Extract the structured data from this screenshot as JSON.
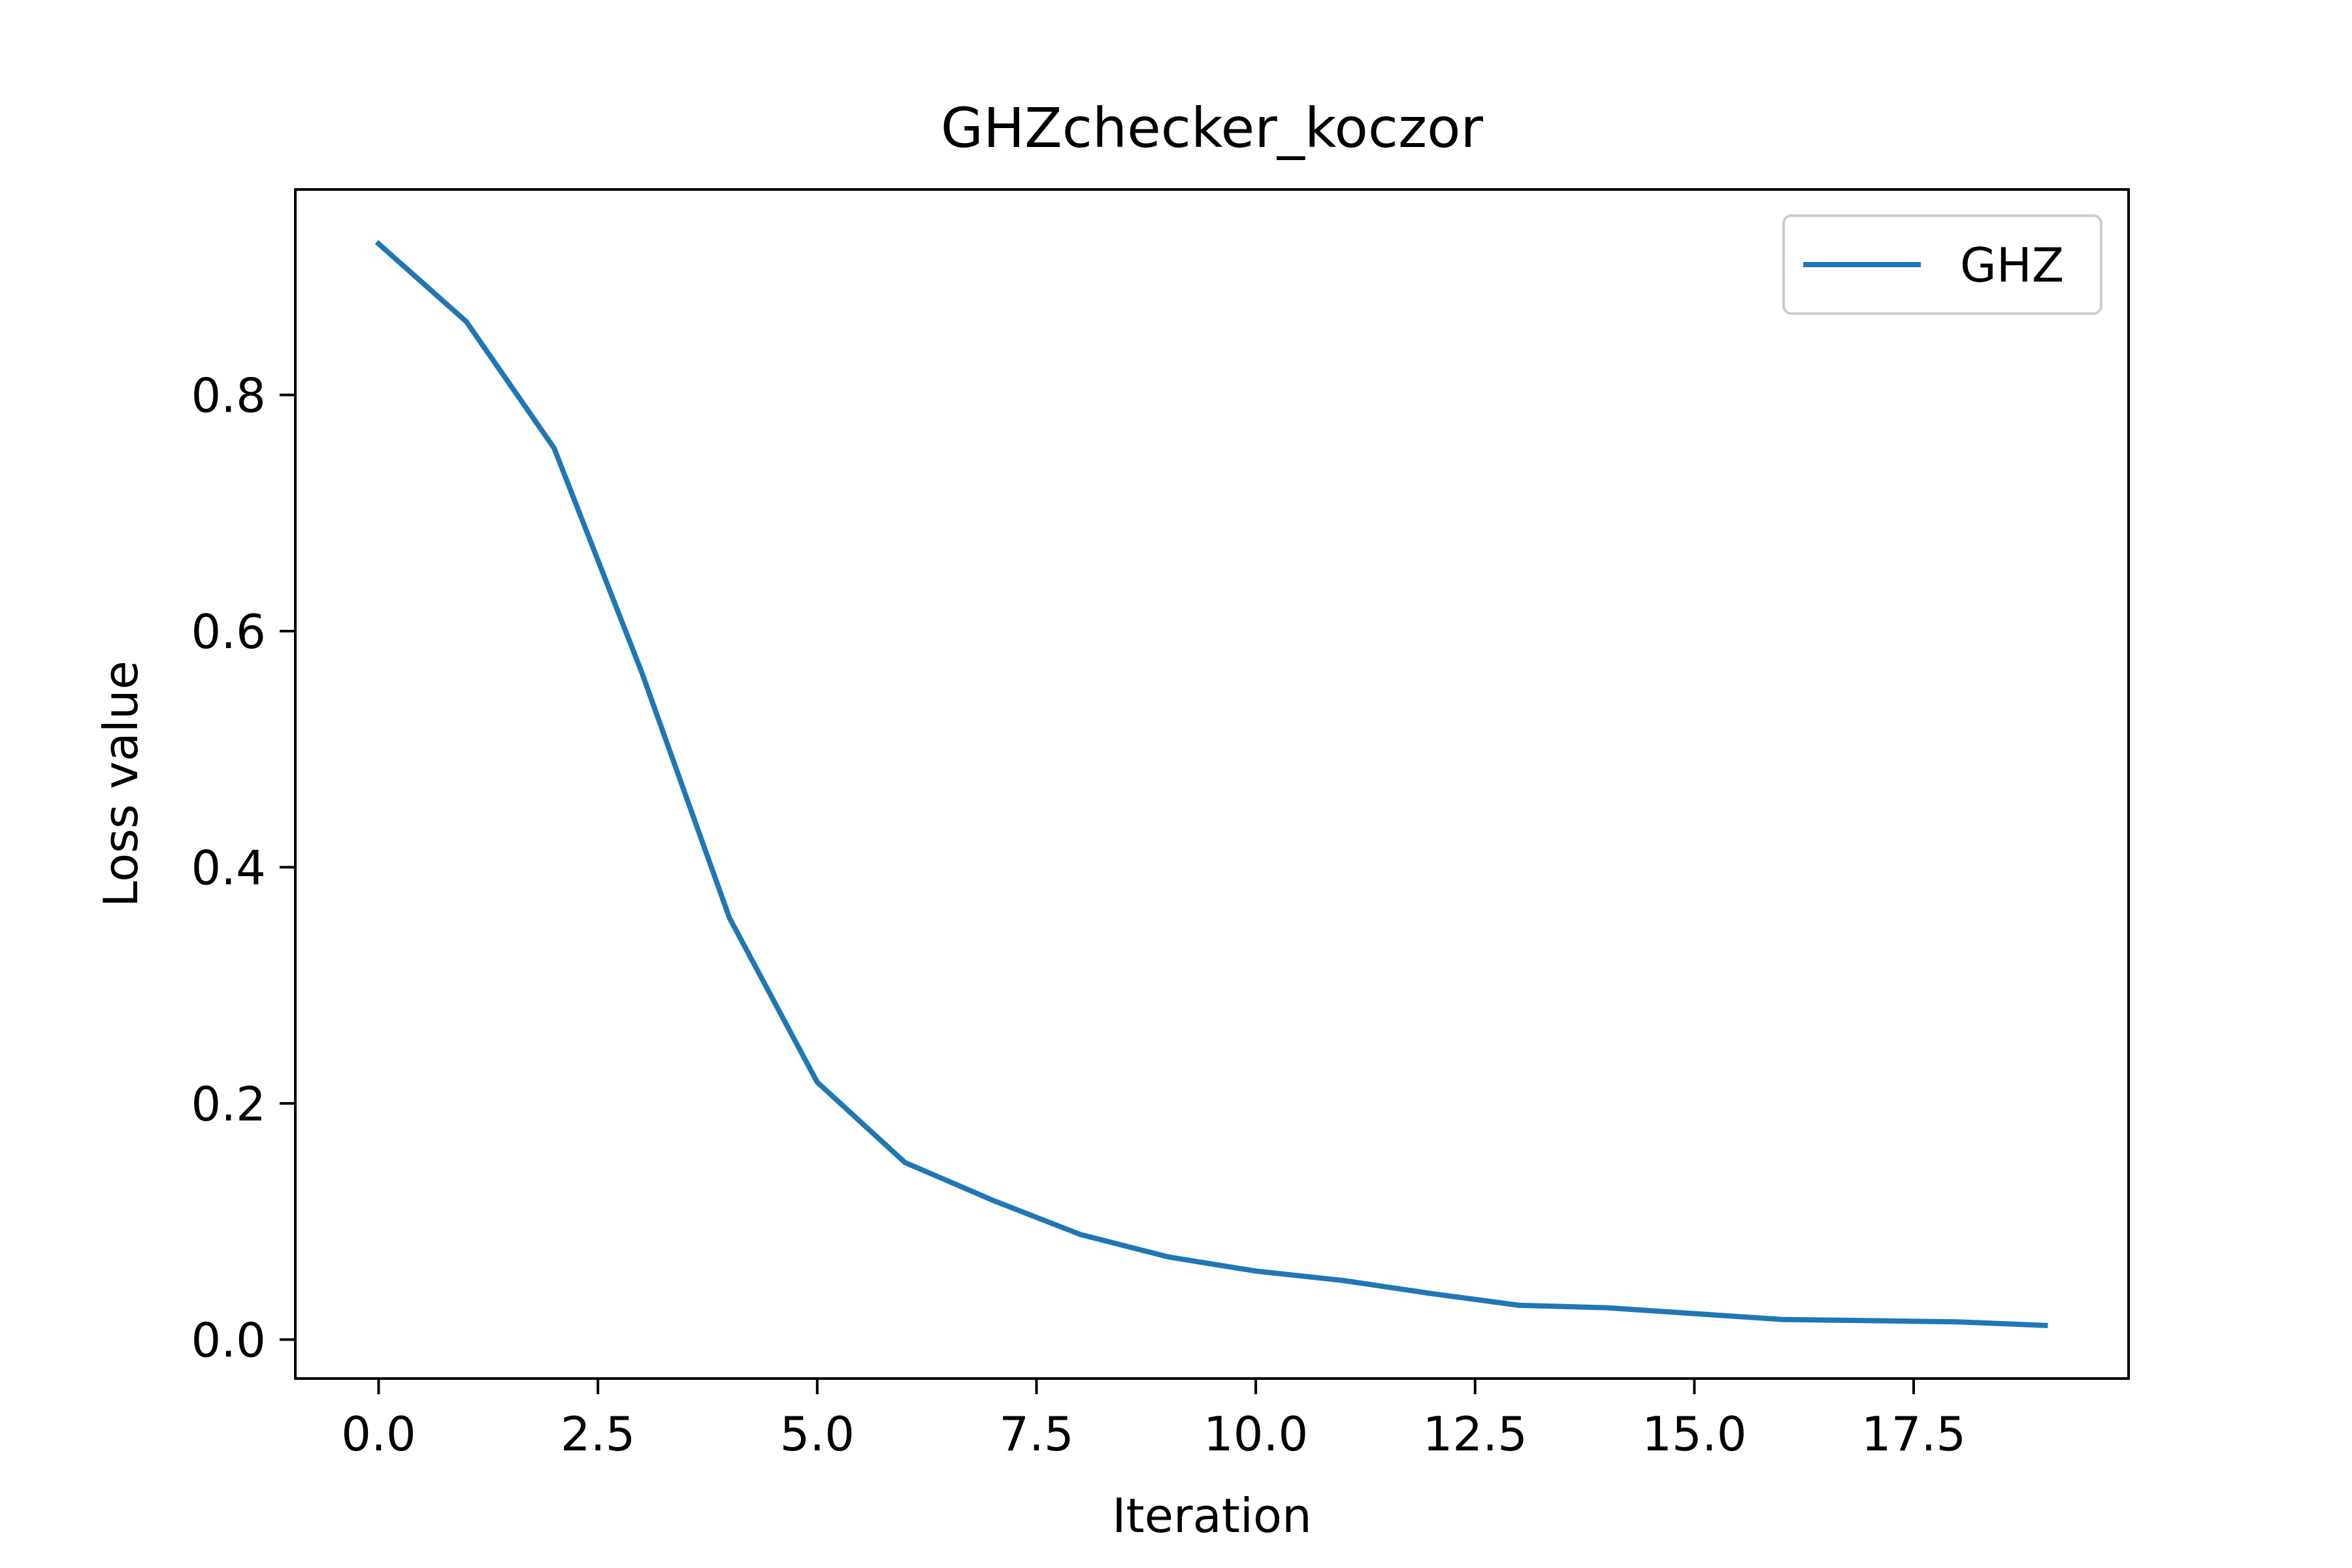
{
  "chart_data": {
    "type": "line",
    "title": "GHZchecker_koczor",
    "xlabel": "Iteration",
    "ylabel": "Loss value",
    "xlim": [
      -0.95,
      19.95
    ],
    "ylim": [
      -0.033,
      0.974
    ],
    "xticks": [
      0.0,
      2.5,
      5.0,
      7.5,
      10.0,
      12.5,
      15.0,
      17.5
    ],
    "xtick_labels": [
      "0.0",
      "2.5",
      "5.0",
      "7.5",
      "10.0",
      "12.5",
      "15.0",
      "17.5"
    ],
    "yticks": [
      0.0,
      0.2,
      0.4,
      0.6,
      0.8
    ],
    "ytick_labels": [
      "0.0",
      "0.2",
      "0.4",
      "0.6",
      "0.8"
    ],
    "grid": false,
    "legend_position": "top-right",
    "series": [
      {
        "name": "GHZ",
        "color": "#1f77b4",
        "x": [
          0,
          1,
          2,
          3,
          4,
          5,
          6,
          7,
          8,
          9,
          10,
          11,
          12,
          13,
          14,
          15,
          16,
          17,
          18,
          19
        ],
        "y": [
          0.928,
          0.862,
          0.755,
          0.565,
          0.357,
          0.218,
          0.15,
          0.118,
          0.089,
          0.07,
          0.058,
          0.05,
          0.039,
          0.029,
          0.027,
          0.022,
          0.017,
          0.016,
          0.015,
          0.012
        ]
      }
    ]
  }
}
